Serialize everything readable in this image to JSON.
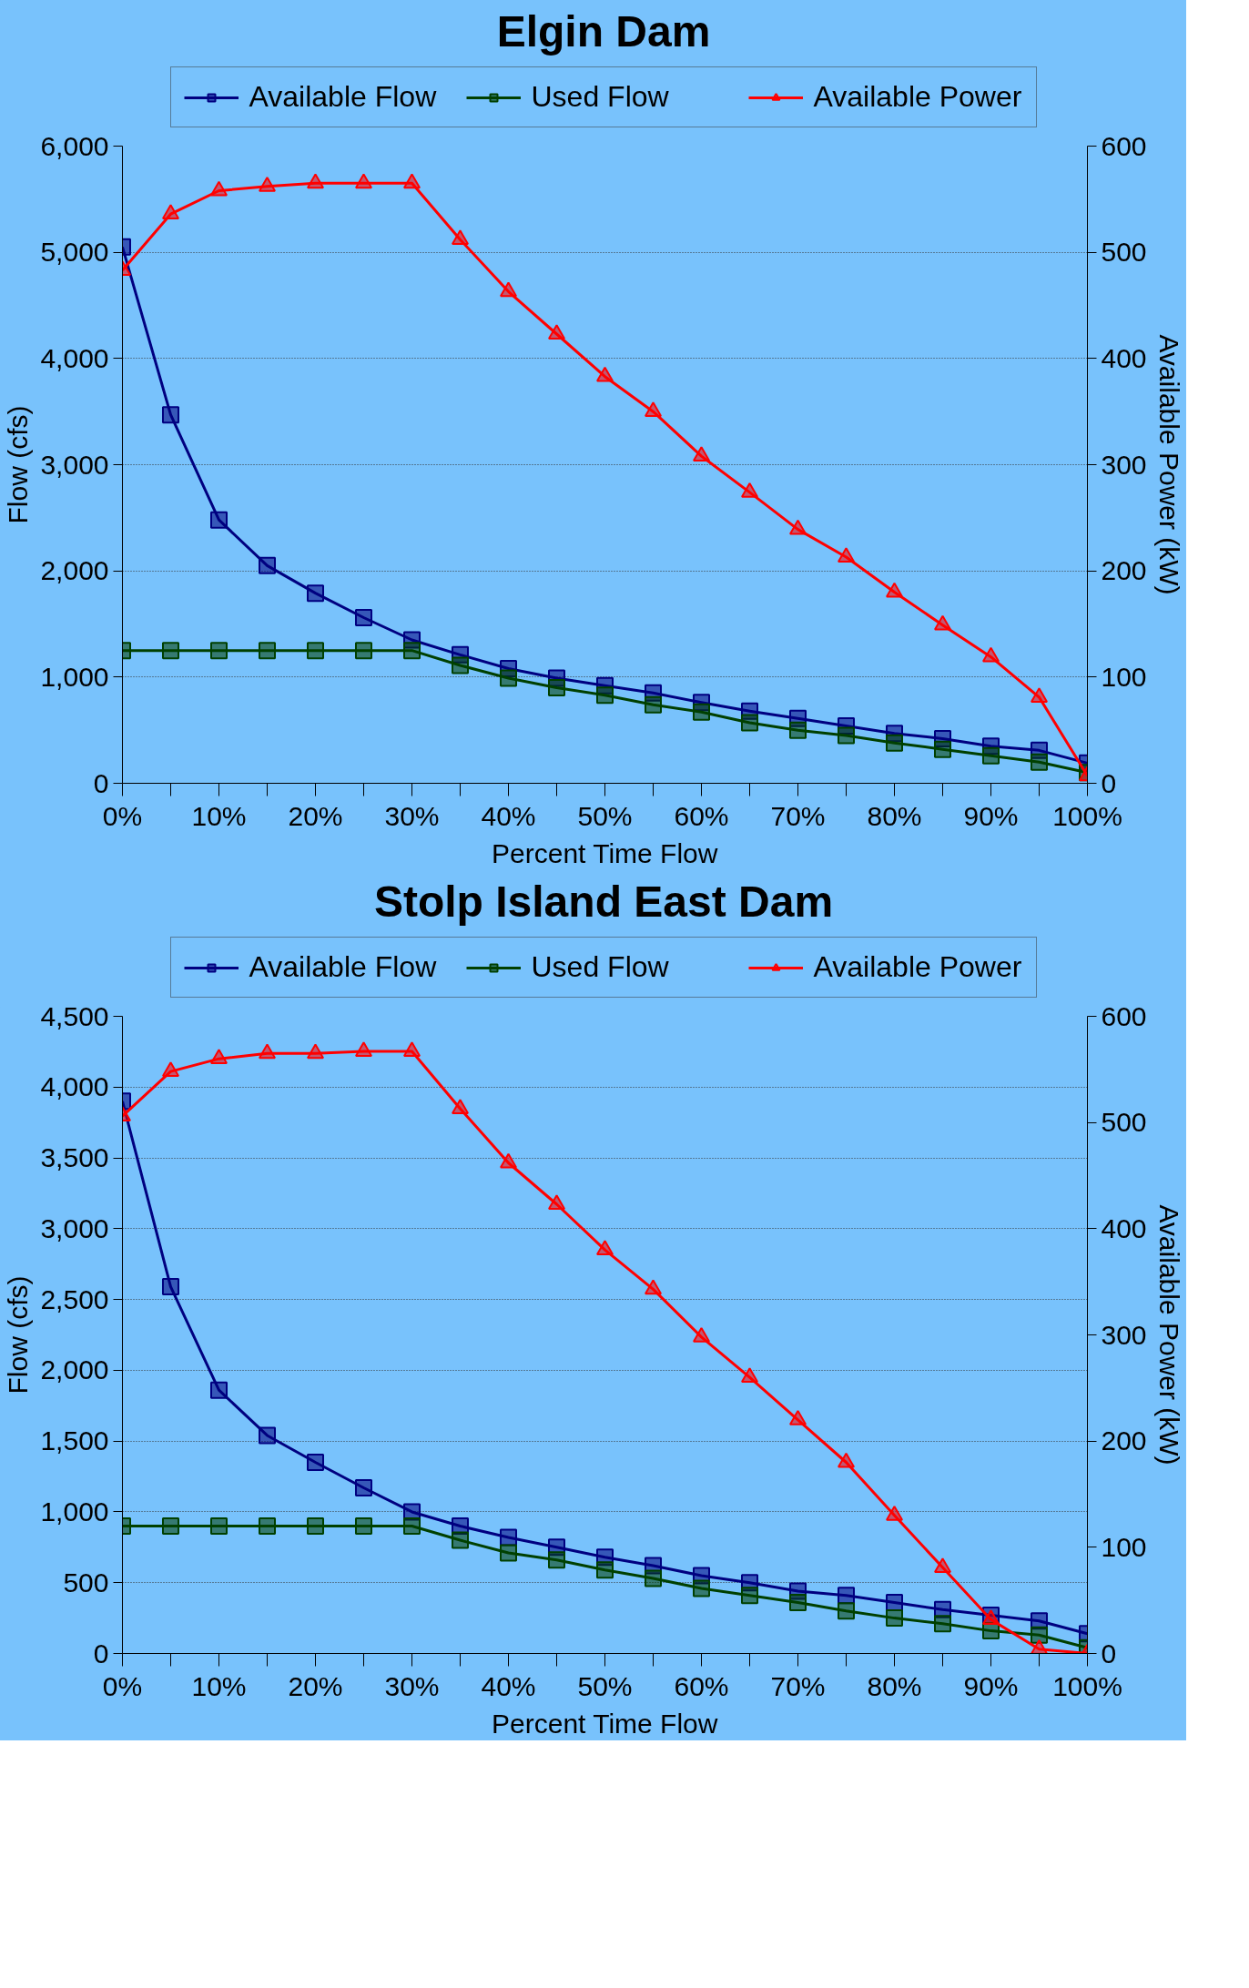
{
  "chart_data": [
    {
      "type": "line",
      "title": "Elgin Dam",
      "xlabel": "Percent Time Flow",
      "ylabel": "Flow (cfs)",
      "y2label": "Available Power (kW)",
      "legend": "top",
      "grid": "y",
      "x": [
        0,
        5,
        10,
        15,
        20,
        25,
        30,
        35,
        40,
        45,
        50,
        55,
        60,
        65,
        70,
        75,
        80,
        85,
        90,
        95,
        100
      ],
      "xlim": [
        0,
        100
      ],
      "xticks": [
        {
          "value": 0,
          "label": "0%"
        },
        {
          "value": 5,
          "label": null
        },
        {
          "value": 10,
          "label": "10%"
        },
        {
          "value": 15,
          "label": null
        },
        {
          "value": 20,
          "label": "20%"
        },
        {
          "value": 25,
          "label": null
        },
        {
          "value": 30,
          "label": "30%"
        },
        {
          "value": 35,
          "label": null
        },
        {
          "value": 40,
          "label": "40%"
        },
        {
          "value": 45,
          "label": null
        },
        {
          "value": 50,
          "label": "50%"
        },
        {
          "value": 55,
          "label": null
        },
        {
          "value": 60,
          "label": "60%"
        },
        {
          "value": 65,
          "label": null
        },
        {
          "value": 70,
          "label": "70%"
        },
        {
          "value": 75,
          "label": null
        },
        {
          "value": 80,
          "label": "80%"
        },
        {
          "value": 85,
          "label": null
        },
        {
          "value": 90,
          "label": "90%"
        },
        {
          "value": 95,
          "label": null
        },
        {
          "value": 100,
          "label": "100%"
        }
      ],
      "ylim": [
        0,
        6000
      ],
      "yticks": [
        0,
        {
          "value": 1000,
          "label": "1,000"
        },
        {
          "value": 2000,
          "label": "2,000"
        },
        {
          "value": 3000,
          "label": "3,000"
        },
        {
          "value": 4000,
          "label": "4,000"
        },
        {
          "value": 5000,
          "label": "5,000"
        },
        {
          "value": 6000,
          "label": "6,000"
        }
      ],
      "y2lim": [
        0,
        600
      ],
      "y2ticks": [
        0,
        100,
        200,
        300,
        400,
        500,
        600
      ],
      "series": [
        {
          "name": "Available Flow",
          "color": "#000080",
          "marker": "square",
          "values": [
            5050,
            3470,
            2480,
            2050,
            1790,
            1560,
            1350,
            1210,
            1080,
            990,
            920,
            850,
            760,
            680,
            610,
            540,
            470,
            420,
            350,
            310,
            190
          ]
        },
        {
          "name": "Used Flow",
          "color": "#004000",
          "marker": "square",
          "values": [
            1250,
            1250,
            1250,
            1250,
            1250,
            1250,
            1250,
            1110,
            990,
            900,
            830,
            740,
            670,
            570,
            500,
            450,
            380,
            320,
            260,
            200,
            100
          ]
        },
        {
          "name": "Available Power",
          "color": "#ff0000",
          "marker": "triangle",
          "axis": "y2",
          "values": [
            483,
            536,
            558,
            562,
            565,
            565,
            565,
            512,
            463,
            423,
            383,
            350,
            308,
            274,
            239,
            213,
            180,
            149,
            119,
            81,
            7
          ]
        }
      ]
    },
    {
      "type": "line",
      "title": "Stolp Island East Dam",
      "xlabel": "Percent Time Flow",
      "ylabel": "Flow (cfs)",
      "y2label": "Available Power (kW)",
      "legend": "top",
      "grid": "y",
      "x": [
        0,
        5,
        10,
        15,
        20,
        25,
        30,
        35,
        40,
        45,
        50,
        55,
        60,
        65,
        70,
        75,
        80,
        85,
        90,
        95,
        100
      ],
      "xlim": [
        0,
        100
      ],
      "xticks": [
        {
          "value": 0,
          "label": "0%"
        },
        {
          "value": 5,
          "label": null
        },
        {
          "value": 10,
          "label": "10%"
        },
        {
          "value": 15,
          "label": null
        },
        {
          "value": 20,
          "label": "20%"
        },
        {
          "value": 25,
          "label": null
        },
        {
          "value": 30,
          "label": "30%"
        },
        {
          "value": 35,
          "label": null
        },
        {
          "value": 40,
          "label": "40%"
        },
        {
          "value": 45,
          "label": null
        },
        {
          "value": 50,
          "label": "50%"
        },
        {
          "value": 55,
          "label": null
        },
        {
          "value": 60,
          "label": "60%"
        },
        {
          "value": 65,
          "label": null
        },
        {
          "value": 70,
          "label": "70%"
        },
        {
          "value": 75,
          "label": null
        },
        {
          "value": 80,
          "label": "80%"
        },
        {
          "value": 85,
          "label": null
        },
        {
          "value": 90,
          "label": "90%"
        },
        {
          "value": 95,
          "label": null
        },
        {
          "value": 100,
          "label": "100%"
        }
      ],
      "ylim": [
        0,
        4500
      ],
      "yticks": [
        0,
        500,
        {
          "value": 1000,
          "label": "1,000"
        },
        {
          "value": 1500,
          "label": "1,500"
        },
        {
          "value": 2000,
          "label": "2,000"
        },
        {
          "value": 2500,
          "label": "2,500"
        },
        {
          "value": 3000,
          "label": "3,000"
        },
        {
          "value": 3500,
          "label": "3,500"
        },
        {
          "value": 4000,
          "label": "4,000"
        },
        {
          "value": 4500,
          "label": "4,500"
        }
      ],
      "y2lim": [
        0,
        600
      ],
      "y2ticks": [
        0,
        100,
        200,
        300,
        400,
        500,
        600
      ],
      "series": [
        {
          "name": "Available Flow",
          "color": "#000080",
          "marker": "square",
          "values": [
            3900,
            2590,
            1860,
            1540,
            1350,
            1170,
            1000,
            900,
            820,
            750,
            680,
            620,
            550,
            500,
            440,
            410,
            360,
            310,
            270,
            230,
            140
          ]
        },
        {
          "name": "Used Flow",
          "color": "#004000",
          "marker": "square",
          "values": [
            900,
            900,
            900,
            900,
            900,
            900,
            900,
            800,
            710,
            660,
            590,
            530,
            460,
            410,
            360,
            300,
            250,
            210,
            160,
            130,
            40
          ]
        },
        {
          "name": "Available Power",
          "color": "#ff0000",
          "marker": "triangle",
          "axis": "y2",
          "values": [
            506,
            548,
            560,
            565,
            565,
            567,
            567,
            513,
            462,
            423,
            380,
            343,
            298,
            260,
            220,
            180,
            130,
            81,
            32,
            4,
            0
          ]
        }
      ]
    }
  ]
}
